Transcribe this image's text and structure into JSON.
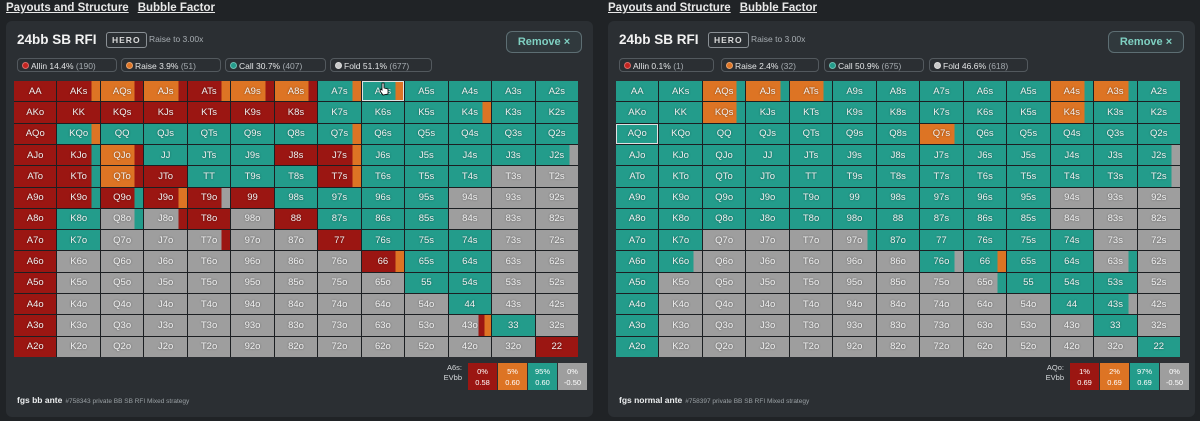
{
  "links": [
    "Payouts and Structure",
    "Bubble Factor"
  ],
  "colors": {
    "allin": "#9b1612",
    "raise": "#dd7424",
    "call": "#239c8b",
    "fold": "#9e9e9e"
  },
  "icons": {
    "close": "×-icon",
    "cursor": "pointer-cursor-icon"
  },
  "hands": [
    [
      "AA",
      "AKs",
      "AQs",
      "AJs",
      "ATs",
      "A9s",
      "A8s",
      "A7s",
      "A6s",
      "A5s",
      "A4s",
      "A3s",
      "A2s"
    ],
    [
      "AKo",
      "KK",
      "KQs",
      "KJs",
      "KTs",
      "K9s",
      "K8s",
      "K7s",
      "K6s",
      "K5s",
      "K4s",
      "K3s",
      "K2s"
    ],
    [
      "AQo",
      "KQo",
      "QQ",
      "QJs",
      "QTs",
      "Q9s",
      "Q8s",
      "Q7s",
      "Q6s",
      "Q5s",
      "Q4s",
      "Q3s",
      "Q2s"
    ],
    [
      "AJo",
      "KJo",
      "QJo",
      "JJ",
      "JTs",
      "J9s",
      "J8s",
      "J7s",
      "J6s",
      "J5s",
      "J4s",
      "J3s",
      "J2s"
    ],
    [
      "ATo",
      "KTo",
      "QTo",
      "JTo",
      "TT",
      "T9s",
      "T8s",
      "T7s",
      "T6s",
      "T5s",
      "T4s",
      "T3s",
      "T2s"
    ],
    [
      "A9o",
      "K9o",
      "Q9o",
      "J9o",
      "T9o",
      "99",
      "98s",
      "97s",
      "96s",
      "95s",
      "94s",
      "93s",
      "92s"
    ],
    [
      "A8o",
      "K8o",
      "Q8o",
      "J8o",
      "T8o",
      "98o",
      "88",
      "87s",
      "86s",
      "85s",
      "84s",
      "83s",
      "82s"
    ],
    [
      "A7o",
      "K7o",
      "Q7o",
      "J7o",
      "T7o",
      "97o",
      "87o",
      "77",
      "76s",
      "75s",
      "74s",
      "73s",
      "72s"
    ],
    [
      "A6o",
      "K6o",
      "Q6o",
      "J6o",
      "T6o",
      "96o",
      "86o",
      "76o",
      "66",
      "65s",
      "64s",
      "63s",
      "62s"
    ],
    [
      "A5o",
      "K5o",
      "Q5o",
      "J5o",
      "T5o",
      "95o",
      "85o",
      "75o",
      "65o",
      "55",
      "54s",
      "53s",
      "52s"
    ],
    [
      "A4o",
      "K4o",
      "Q4o",
      "J4o",
      "T4o",
      "94o",
      "84o",
      "74o",
      "64o",
      "54o",
      "44",
      "43s",
      "42s"
    ],
    [
      "A3o",
      "K3o",
      "Q3o",
      "J3o",
      "T3o",
      "93o",
      "83o",
      "73o",
      "63o",
      "53o",
      "43o",
      "33",
      "32s"
    ],
    [
      "A2o",
      "K2o",
      "Q2o",
      "J2o",
      "T2o",
      "92o",
      "82o",
      "72o",
      "62o",
      "52o",
      "42o",
      "32o",
      "22"
    ]
  ],
  "panels": [
    {
      "title": "24bb SB RFI",
      "hero_badge": "HERO",
      "raise_to": "Raise to 3.00x",
      "remove_label": "Remove ×",
      "legend": [
        {
          "label": "Allin 14.4%",
          "count": "(190)"
        },
        {
          "label": "Raise 3.9%",
          "count": "(51)"
        },
        {
          "label": "Call 30.7%",
          "count": "(407)"
        },
        {
          "label": "Fold 51.1%",
          "count": "(677)"
        }
      ],
      "selected_hand": "A6s",
      "detail": {
        "hand_label": "A6s:",
        "ev_label": "EVbb",
        "cols": [
          {
            "pct": "0%",
            "ev": "0.58"
          },
          {
            "pct": "5%",
            "ev": "0.60"
          },
          {
            "pct": "95%",
            "ev": "0.60"
          },
          {
            "pct": "0%",
            "ev": "-0.50"
          }
        ]
      },
      "footer_title": "fgs bb ante",
      "footer_sub": "#758343 private BB SB RFI Mixed strategy",
      "strategy": [
        [
          "A",
          "AR",
          "RA",
          "RA",
          "AR",
          "RA",
          "RA",
          "CR",
          "CR",
          "C",
          "C",
          "C",
          "C"
        ],
        [
          "A",
          "A",
          "A",
          "A",
          "A",
          "A",
          "A",
          "C",
          "C",
          "C",
          "CR",
          "C",
          "C"
        ],
        [
          "A",
          "CR",
          "C",
          "C",
          "C",
          "C",
          "C",
          "CR",
          "C",
          "C",
          "C",
          "C",
          "C"
        ],
        [
          "A",
          "AC",
          "RA",
          "C",
          "C",
          "C",
          "A",
          "AR",
          "C",
          "C",
          "C",
          "C",
          "CF"
        ],
        [
          "A",
          "AC",
          "RA",
          "A",
          "C",
          "C",
          "C",
          "AR",
          "C",
          "C",
          "C",
          "F",
          "F"
        ],
        [
          "A",
          "AC",
          "AC",
          "AR",
          "AF",
          "A",
          "C",
          "C",
          "C",
          "C",
          "F",
          "F",
          "F"
        ],
        [
          "A",
          "C",
          "FC",
          "FA",
          "A",
          "F",
          "A",
          "C",
          "C",
          "C",
          "F",
          "F",
          "F"
        ],
        [
          "A",
          "C",
          "F",
          "F",
          "FA",
          "F",
          "F",
          "A",
          "C",
          "C",
          "C",
          "F",
          "F"
        ],
        [
          "A",
          "F",
          "F",
          "F",
          "F",
          "F",
          "F",
          "F",
          "AR",
          "C",
          "C",
          "F",
          "F"
        ],
        [
          "A",
          "F",
          "F",
          "F",
          "F",
          "F",
          "F",
          "F",
          "F",
          "C",
          "C",
          "F",
          "F"
        ],
        [
          "A",
          "F",
          "F",
          "F",
          "F",
          "F",
          "F",
          "F",
          "F",
          "F",
          "C",
          "F",
          "F"
        ],
        [
          "A",
          "F",
          "F",
          "F",
          "F",
          "F",
          "F",
          "F",
          "F",
          "F",
          "FAR",
          "C",
          "F"
        ],
        [
          "A",
          "F",
          "F",
          "F",
          "F",
          "F",
          "F",
          "F",
          "F",
          "F",
          "F",
          "F",
          "A"
        ]
      ]
    },
    {
      "title": "24bb SB RFI",
      "hero_badge": "HERO",
      "raise_to": "Raise to 3.00x",
      "remove_label": "Remove ×",
      "legend": [
        {
          "label": "Allin 0.1%",
          "count": "(1)"
        },
        {
          "label": "Raise 2.4%",
          "count": "(32)"
        },
        {
          "label": "Call 50.9%",
          "count": "(675)"
        },
        {
          "label": "Fold 46.6%",
          "count": "(618)"
        }
      ],
      "selected_hand": "AQo",
      "detail": {
        "hand_label": "AQo:",
        "ev_label": "EVbb",
        "cols": [
          {
            "pct": "1%",
            "ev": "0.69"
          },
          {
            "pct": "2%",
            "ev": "0.69"
          },
          {
            "pct": "97%",
            "ev": "0.69"
          },
          {
            "pct": "0%",
            "ev": "-0.50"
          }
        ]
      },
      "footer_title": "fgs normal ante",
      "footer_sub": "#758397 private BB SB RFI Mixed strategy",
      "strategy": [
        [
          "C",
          "C",
          "RC",
          "RC",
          "RC",
          "C",
          "C",
          "C",
          "C",
          "C",
          "RC",
          "RC",
          "C"
        ],
        [
          "C",
          "C",
          "RC",
          "C",
          "C",
          "C",
          "C",
          "C",
          "C",
          "C",
          "RC",
          "C",
          "C"
        ],
        [
          "C",
          "C",
          "C",
          "C",
          "C",
          "C",
          "C",
          "RC",
          "C",
          "C",
          "C",
          "C",
          "C"
        ],
        [
          "C",
          "C",
          "C",
          "C",
          "C",
          "C",
          "C",
          "C",
          "C",
          "C",
          "C",
          "C",
          "CF"
        ],
        [
          "C",
          "C",
          "C",
          "C",
          "C",
          "C",
          "C",
          "C",
          "C",
          "C",
          "C",
          "C",
          "CF"
        ],
        [
          "C",
          "C",
          "C",
          "C",
          "C",
          "C",
          "C",
          "C",
          "C",
          "C",
          "F",
          "F",
          "F"
        ],
        [
          "C",
          "C",
          "C",
          "C",
          "C",
          "C",
          "C",
          "C",
          "C",
          "C",
          "F",
          "F",
          "F"
        ],
        [
          "C",
          "C",
          "F",
          "F",
          "F",
          "FC",
          "C",
          "C",
          "C",
          "C",
          "C",
          "F",
          "F"
        ],
        [
          "C",
          "CF",
          "F",
          "F",
          "F",
          "F",
          "F",
          "CF",
          "CR",
          "C",
          "C",
          "FC",
          "F"
        ],
        [
          "C",
          "F",
          "F",
          "F",
          "F",
          "F",
          "F",
          "F",
          "FC",
          "C",
          "C",
          "C",
          "F"
        ],
        [
          "C",
          "F",
          "F",
          "F",
          "F",
          "F",
          "F",
          "F",
          "F",
          "F",
          "C",
          "CF",
          "F"
        ],
        [
          "C",
          "F",
          "F",
          "F",
          "F",
          "F",
          "F",
          "F",
          "F",
          "F",
          "F",
          "C",
          "F"
        ],
        [
          "C",
          "F",
          "F",
          "F",
          "F",
          "F",
          "F",
          "F",
          "F",
          "F",
          "F",
          "F",
          "C"
        ]
      ]
    }
  ]
}
